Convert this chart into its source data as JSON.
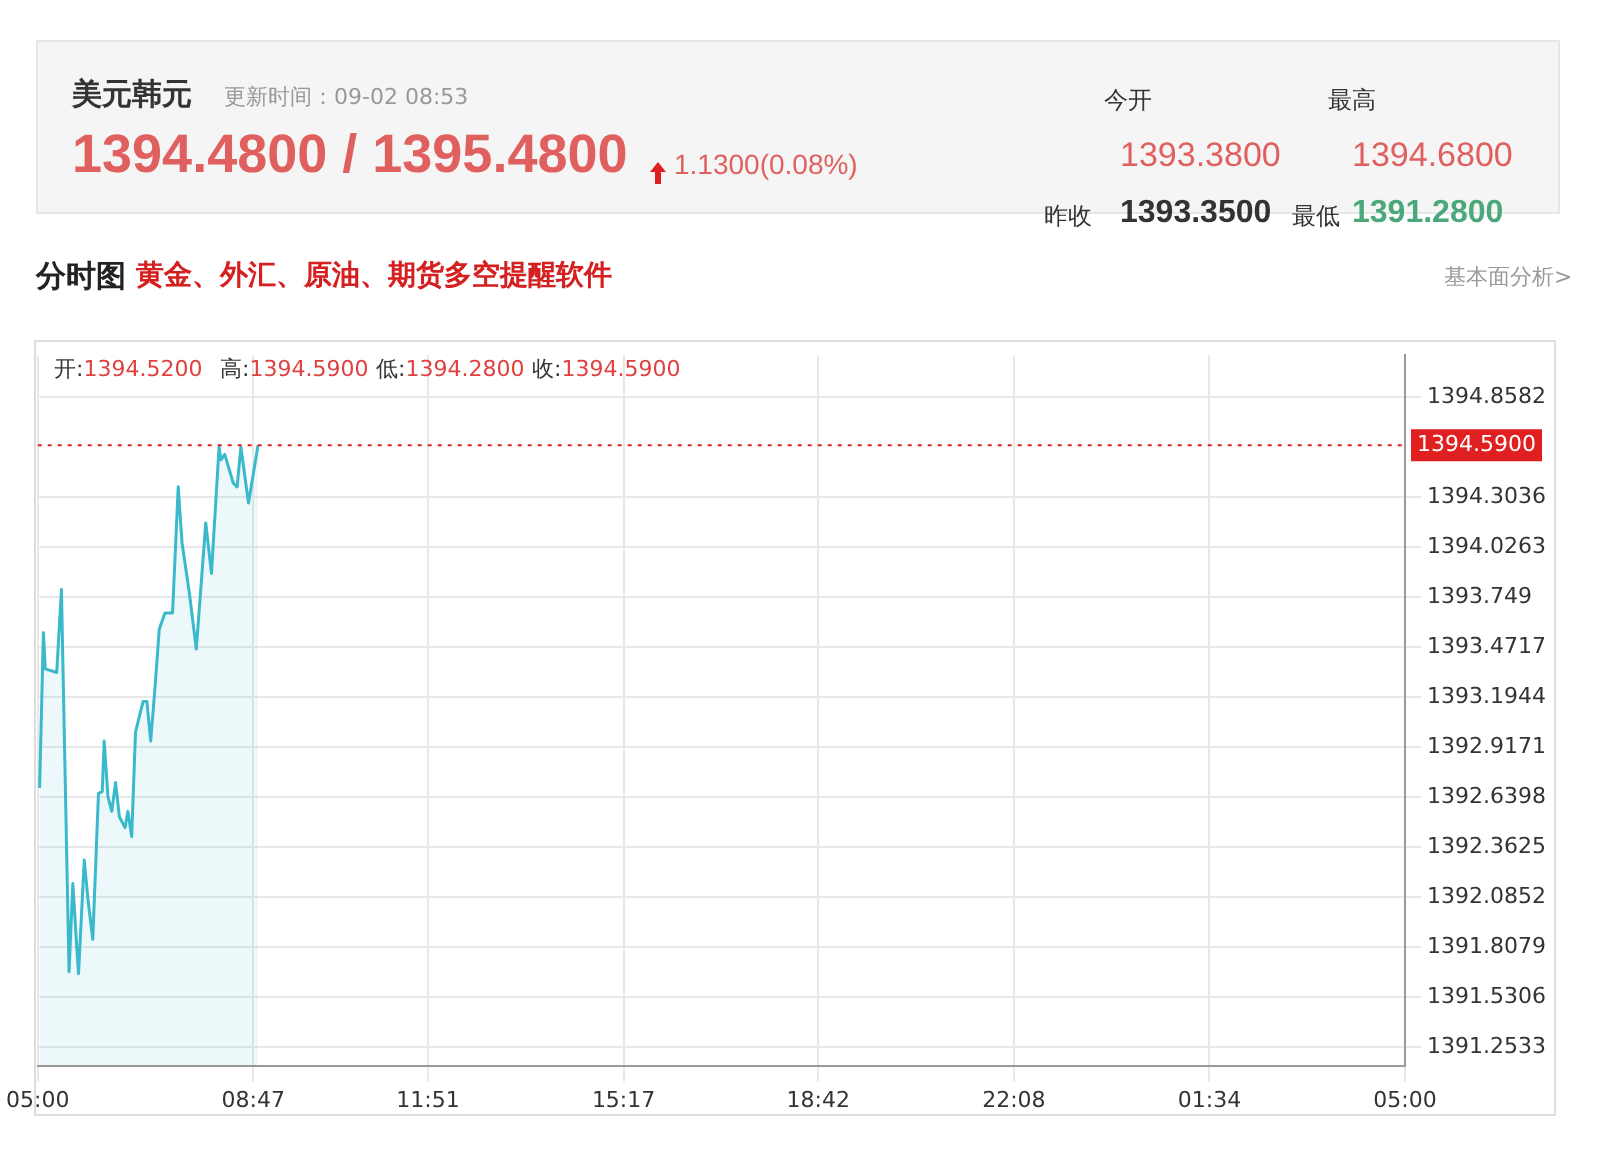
{
  "chart_data": {
    "type": "area",
    "title": "美元韩元",
    "subtitle": "更新时间：09-02 08:53",
    "annotations": [
      "1394.4800 / 1395.4800",
      "1.1300(0.08%)",
      "今开",
      "1393.3800",
      "最高",
      "1394.6800",
      "昨收",
      "1393.3500",
      "最低",
      "1391.2800",
      "分时图",
      "黄金、外汇、原油、期货多空提醒软件",
      "基本面分析>",
      "开:1394.5200",
      "高:1394.5900",
      "低:1394.2800",
      "收:1394.5900"
    ],
    "x": [
      "--09-02T05:02",
      "--09-02T05:06",
      "--09-02T05:08",
      "--09-02T05:20",
      "--09-02T05:25",
      "--09-02T05:33",
      "--09-02T05:37",
      "--09-02T05:41",
      "--09-02T05:43",
      "--09-02T05:49",
      "--09-02T05:53",
      "--09-02T05:58",
      "--09-02T06:04",
      "--09-02T06:08",
      "--09-02T06:10",
      "--09-02T06:14",
      "--09-02T06:18",
      "--09-02T06:22",
      "--09-02T06:26",
      "--09-02T06:32",
      "--09-02T06:35",
      "--09-02T06:39",
      "--09-02T06:43",
      "--09-02T06:51",
      "--09-02T06:55",
      "--09-02T06:59",
      "--09-02T07:04",
      "--09-02T07:08",
      "--09-02T07:14",
      "--09-02T07:22",
      "--09-02T07:28",
      "--09-02T07:32",
      "--09-02T07:40",
      "--09-02T07:47",
      "--09-02T07:57",
      "--09-02T08:03",
      "--09-02T08:11",
      "--09-02T08:13",
      "--09-02T08:17",
      "--09-02T08:26",
      "--09-02T08:30",
      "--09-02T08:34",
      "--09-02T08:42",
      "--09-02T08:52"
    ],
    "series": [
      {
        "color": "#3ab8cc",
        "values": [
          1392.69,
          1393.55,
          1393.35,
          1393.33,
          1393.79,
          1391.67,
          1392.16,
          1391.82,
          1391.66,
          1392.29,
          1392.07,
          1391.85,
          1392.66,
          1392.67,
          1392.95,
          1392.64,
          1392.56,
          1392.72,
          1392.53,
          1392.47,
          1392.56,
          1392.42,
          1393.0,
          1393.17,
          1393.17,
          1392.95,
          1393.28,
          1393.57,
          1393.66,
          1393.66,
          1394.36,
          1394.05,
          1393.76,
          1393.46,
          1394.16,
          1393.88,
          1394.58,
          1394.51,
          1394.54,
          1394.38,
          1394.36,
          1394.58,
          1394.27,
          1394.59
        ]
      }
    ],
    "xlim": [
      "--09-02T05:00",
      "--09-03T05:00"
    ],
    "xticks": [
      {
        "value": "--09-02T05:00",
        "label": "05:00"
      },
      {
        "value": "--09-02T08:47",
        "label": "08:47"
      },
      {
        "value": "--09-02T11:51",
        "label": "11:51"
      },
      {
        "value": "--09-02T15:17",
        "label": "15:17"
      },
      {
        "value": "--09-02T18:42",
        "label": "18:42"
      },
      {
        "value": "--09-02T22:08",
        "label": "22:08"
      },
      {
        "value": "--09-03T01:34",
        "label": "01:34"
      },
      {
        "value": "--09-03T05:00",
        "label": "05:00"
      }
    ],
    "ylim": [
      1391.15,
      1395.09
    ],
    "yticks": [
      1391.2533,
      1391.5306,
      1391.8079,
      1392.0852,
      1392.3625,
      1392.6398,
      1392.9171,
      1393.1944,
      1393.4717,
      1393.749,
      1394.0263,
      1394.3036,
      1394.8582
    ],
    "ref_lines": [
      {
        "axis": "y",
        "value": 1394.59,
        "label": "1394.5900",
        "color": "#e02020",
        "line_style": "dotted"
      }
    ],
    "grid": true,
    "legend": false,
    "marker": "none",
    "line_style": "solid"
  }
}
